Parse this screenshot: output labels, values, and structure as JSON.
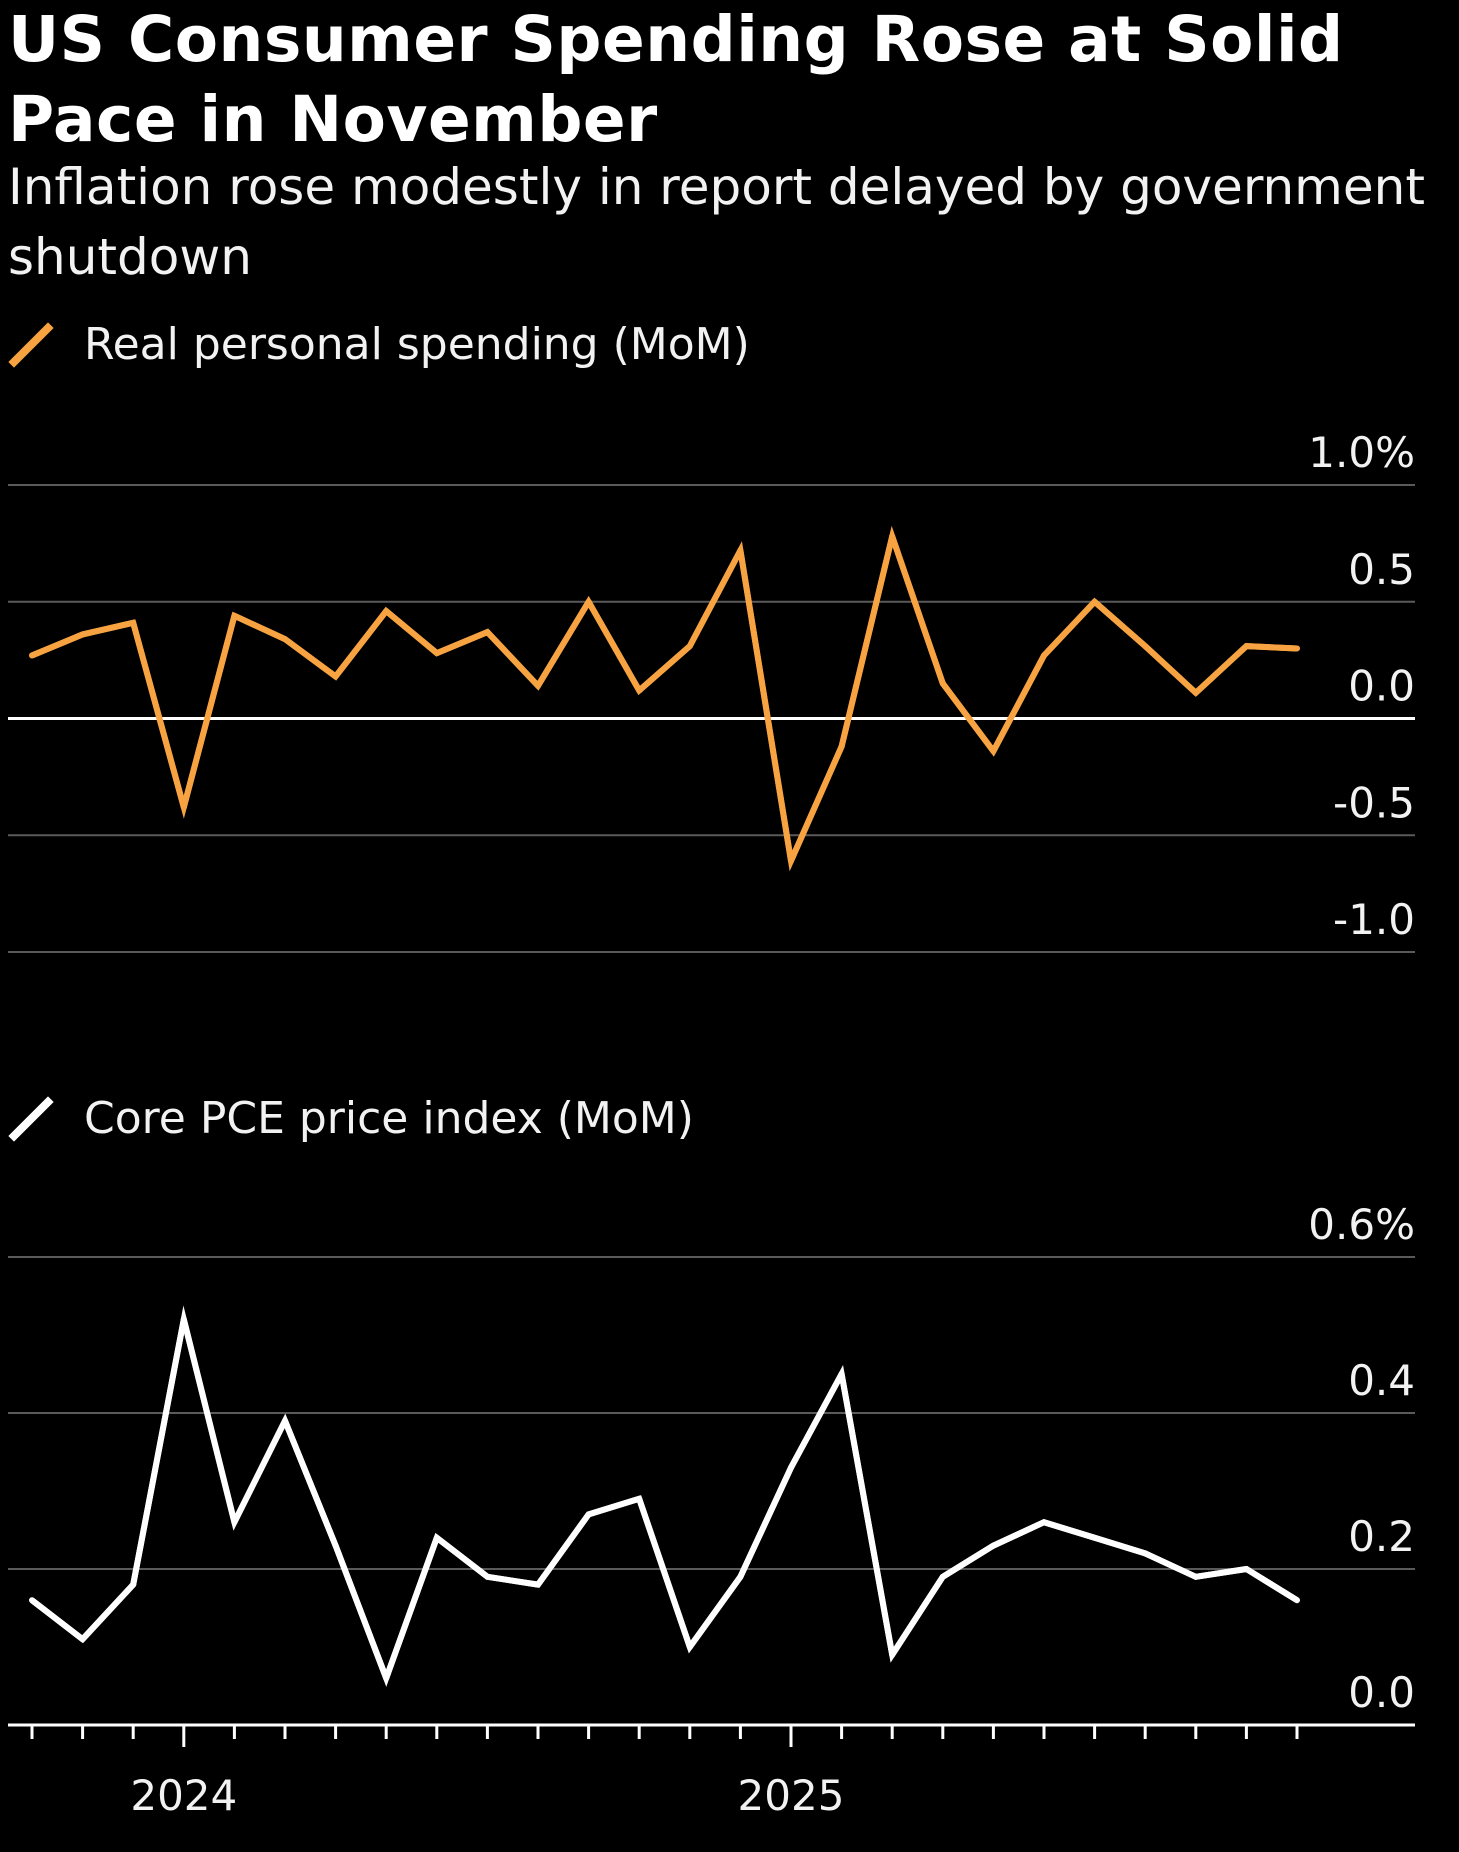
{
  "title": "US Consumer Spending Rose at Solid Pace in November",
  "subtitle": "Inflation rose modestly in report delayed by government shutdown",
  "colors": {
    "background": "#000000",
    "spending_line": "#f7a341",
    "pce_line": "#ffffff",
    "gridline": "#5a5a5a",
    "baseline": "#ffffff"
  },
  "chart_data": [
    {
      "type": "line",
      "panel": "top",
      "legend": "Real personal spending (MoM)",
      "y_ticks": [
        "1.0%",
        "0.5",
        "0.0",
        "-0.5",
        "-1.0"
      ],
      "y_tick_values": [
        1.0,
        0.5,
        0.0,
        -0.5,
        -1.0
      ],
      "ylim": [
        -1.0,
        1.0
      ],
      "x": [
        "2023-10",
        "2023-11",
        "2023-12",
        "2024-01",
        "2024-02",
        "2024-03",
        "2024-04",
        "2024-05",
        "2024-06",
        "2024-07",
        "2024-08",
        "2024-09",
        "2024-10",
        "2024-11",
        "2024-12",
        "2025-01",
        "2025-02",
        "2025-03",
        "2025-04",
        "2025-05",
        "2025-06",
        "2025-07",
        "2025-08",
        "2025-09",
        "2025-10",
        "2025-11"
      ],
      "series": [
        {
          "name": "Real personal spending (MoM)",
          "values": [
            0.27,
            0.36,
            0.41,
            -0.38,
            0.44,
            0.34,
            0.18,
            0.46,
            0.28,
            0.37,
            0.14,
            0.5,
            0.12,
            0.31,
            0.72,
            -0.61,
            -0.12,
            0.78,
            0.15,
            -0.14,
            0.27,
            0.5,
            0.31,
            0.11,
            0.31,
            0.3
          ]
        }
      ],
      "grid": true
    },
    {
      "type": "line",
      "panel": "bottom",
      "legend": "Core PCE price index (MoM)",
      "y_ticks": [
        "0.6%",
        "0.4",
        "0.2",
        "0.0"
      ],
      "y_tick_values": [
        0.6,
        0.4,
        0.2,
        0.0
      ],
      "ylim": [
        0.0,
        0.6
      ],
      "x_ticks": [
        "2024",
        "2025"
      ],
      "x_tick_positions": [
        "2024-01",
        "2025-01"
      ],
      "x": [
        "2023-10",
        "2023-11",
        "2023-12",
        "2024-01",
        "2024-02",
        "2024-03",
        "2024-04",
        "2024-05",
        "2024-06",
        "2024-07",
        "2024-08",
        "2024-09",
        "2024-10",
        "2024-11",
        "2024-12",
        "2025-01",
        "2025-02",
        "2025-03",
        "2025-04",
        "2025-05",
        "2025-06",
        "2025-07",
        "2025-08",
        "2025-09",
        "2025-10",
        "2025-11"
      ],
      "series": [
        {
          "name": "Core PCE price index (MoM)",
          "values": [
            0.16,
            0.11,
            0.18,
            0.52,
            0.26,
            0.39,
            0.23,
            0.06,
            0.24,
            0.19,
            0.18,
            0.27,
            0.29,
            0.1,
            0.19,
            0.33,
            0.45,
            0.09,
            0.19,
            0.23,
            0.26,
            0.24,
            0.22,
            0.19,
            0.2,
            0.16
          ]
        }
      ],
      "grid": true
    }
  ]
}
